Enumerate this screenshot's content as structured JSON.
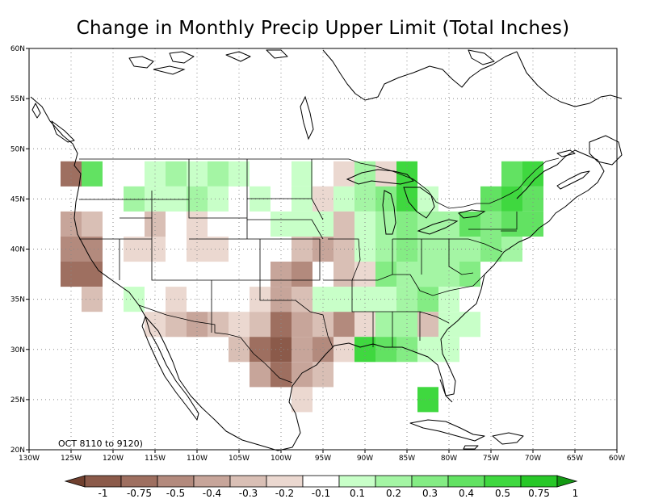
{
  "title": "Change in Monthly Precip Upper Limit (Total Inches)",
  "period_label": "OCT 8110 to 9120)",
  "map": {
    "lon_range": [
      -130,
      -60
    ],
    "lat_range": [
      20,
      60
    ],
    "lon_ticks": [
      {
        "value": -130,
        "label": "130W"
      },
      {
        "value": -125,
        "label": "125W"
      },
      {
        "value": -120,
        "label": "120W"
      },
      {
        "value": -115,
        "label": "115W"
      },
      {
        "value": -110,
        "label": "110W"
      },
      {
        "value": -105,
        "label": "105W"
      },
      {
        "value": -100,
        "label": "100W"
      },
      {
        "value": -95,
        "label": "95W"
      },
      {
        "value": -90,
        "label": "90W"
      },
      {
        "value": -85,
        "label": "85W"
      },
      {
        "value": -80,
        "label": "80W"
      },
      {
        "value": -75,
        "label": "75W"
      },
      {
        "value": -70,
        "label": "70W"
      },
      {
        "value": -65,
        "label": "65W"
      },
      {
        "value": -60,
        "label": "60W"
      }
    ],
    "lat_ticks": [
      {
        "value": 20,
        "label": "20N"
      },
      {
        "value": 25,
        "label": "25N"
      },
      {
        "value": 30,
        "label": "30N"
      },
      {
        "value": 35,
        "label": "35N"
      },
      {
        "value": 40,
        "label": "40N"
      },
      {
        "value": 45,
        "label": "45N"
      },
      {
        "value": 50,
        "label": "50N"
      },
      {
        "value": 55,
        "label": "55N"
      },
      {
        "value": 60,
        "label": "60N"
      }
    ],
    "grid": true
  },
  "colorbar": {
    "labels": [
      "-1",
      "-0.75",
      "-0.5",
      "-0.4",
      "-0.3",
      "-0.2",
      "-0.1",
      "0.1",
      "0.2",
      "0.3",
      "0.4",
      "0.5",
      "0.75",
      "1"
    ],
    "colors": [
      "#8b5a4a",
      "#9e6f60",
      "#b38a7d",
      "#c7a59a",
      "#d9bfb5",
      "#ebd8d0",
      "#ffffff",
      "#c8ffc8",
      "#a4f5a4",
      "#84ec84",
      "#62e262",
      "#3fd83f",
      "#28c828"
    ],
    "left_arrow": "#70402f",
    "right_arrow": "#149a14"
  },
  "chart_data": {
    "type": "heatmap",
    "title": "Change in Monthly Precip Upper Limit (Total Inches)",
    "annotation": "OCT 8110 to 9120)",
    "units": "Total Inches",
    "cell_size_deg": 2.5,
    "category_scale": [
      "<-1",
      "-1 to -0.75",
      "-0.75 to -0.5",
      "-0.5 to -0.4",
      "-0.4 to -0.3",
      "-0.3 to -0.2",
      "-0.2 to -0.1",
      "-0.1 to 0.1",
      "0.1 to 0.2",
      "0.2 to 0.3",
      "0.3 to 0.4",
      "0.4 to 0.5",
      "0.5 to 0.75",
      "0.75 to 1",
      ">1"
    ],
    "cells": [
      {
        "lon": -125,
        "lat": 47.5,
        "value": -0.55
      },
      {
        "lon": -122.5,
        "lat": 47.5,
        "value": 0.45
      },
      {
        "lon": -115,
        "lat": 47.5,
        "value": 0.15
      },
      {
        "lon": -112.5,
        "lat": 47.5,
        "value": 0.25
      },
      {
        "lon": -110,
        "lat": 47.5,
        "value": 0.15
      },
      {
        "lon": -107.5,
        "lat": 47.5,
        "value": 0.25
      },
      {
        "lon": -105,
        "lat": 47.5,
        "value": 0.15
      },
      {
        "lon": -97.5,
        "lat": 47.5,
        "value": 0.15
      },
      {
        "lon": -92.5,
        "lat": 47.5,
        "value": -0.15
      },
      {
        "lon": -90,
        "lat": 47.5,
        "value": 0.25
      },
      {
        "lon": -87.5,
        "lat": 47.5,
        "value": -0.15
      },
      {
        "lon": -85,
        "lat": 47.5,
        "value": 0.55
      },
      {
        "lon": -72.5,
        "lat": 47.5,
        "value": 0.45
      },
      {
        "lon": -70,
        "lat": 47.5,
        "value": 0.55
      },
      {
        "lon": -117.5,
        "lat": 45,
        "value": 0.25
      },
      {
        "lon": -115,
        "lat": 45,
        "value": 0.15
      },
      {
        "lon": -112.5,
        "lat": 45,
        "value": 0.15
      },
      {
        "lon": -110,
        "lat": 45,
        "value": 0.25
      },
      {
        "lon": -107.5,
        "lat": 45,
        "value": 0.15
      },
      {
        "lon": -102.5,
        "lat": 45,
        "value": 0.15
      },
      {
        "lon": -97.5,
        "lat": 45,
        "value": 0.15
      },
      {
        "lon": -95,
        "lat": 45,
        "value": -0.15
      },
      {
        "lon": -92.5,
        "lat": 45,
        "value": 0.15
      },
      {
        "lon": -90,
        "lat": 45,
        "value": 0.25
      },
      {
        "lon": -87.5,
        "lat": 45,
        "value": 0.35
      },
      {
        "lon": -85,
        "lat": 45,
        "value": 0.6
      },
      {
        "lon": -82.5,
        "lat": 45,
        "value": 0.15
      },
      {
        "lon": -75,
        "lat": 45,
        "value": 0.45
      },
      {
        "lon": -72.5,
        "lat": 45,
        "value": 0.55
      },
      {
        "lon": -70,
        "lat": 45,
        "value": 0.45
      },
      {
        "lon": -125,
        "lat": 42.5,
        "value": -0.35
      },
      {
        "lon": -122.5,
        "lat": 42.5,
        "value": -0.25
      },
      {
        "lon": -115,
        "lat": 42.5,
        "value": -0.25
      },
      {
        "lon": -110,
        "lat": 42.5,
        "value": -0.15
      },
      {
        "lon": -100,
        "lat": 42.5,
        "value": 0.15
      },
      {
        "lon": -97.5,
        "lat": 42.5,
        "value": 0.15
      },
      {
        "lon": -95,
        "lat": 42.5,
        "value": 0.15
      },
      {
        "lon": -92.5,
        "lat": 42.5,
        "value": -0.25
      },
      {
        "lon": -90,
        "lat": 42.5,
        "value": 0.15
      },
      {
        "lon": -87.5,
        "lat": 42.5,
        "value": 0.25
      },
      {
        "lon": -85,
        "lat": 42.5,
        "value": 0.35
      },
      {
        "lon": -82.5,
        "lat": 42.5,
        "value": 0.25
      },
      {
        "lon": -80,
        "lat": 42.5,
        "value": 0.25
      },
      {
        "lon": -77.5,
        "lat": 42.5,
        "value": 0.45
      },
      {
        "lon": -75,
        "lat": 42.5,
        "value": 0.35
      },
      {
        "lon": -72.5,
        "lat": 42.5,
        "value": 0.45
      },
      {
        "lon": -70,
        "lat": 42.5,
        "value": 0.45
      },
      {
        "lon": -125,
        "lat": 40,
        "value": -0.45
      },
      {
        "lon": -122.5,
        "lat": 40,
        "value": -0.45
      },
      {
        "lon": -117.5,
        "lat": 40,
        "value": -0.15
      },
      {
        "lon": -115,
        "lat": 40,
        "value": -0.15
      },
      {
        "lon": -110,
        "lat": 40,
        "value": -0.15
      },
      {
        "lon": -107.5,
        "lat": 40,
        "value": -0.15
      },
      {
        "lon": -97.5,
        "lat": 40,
        "value": -0.25
      },
      {
        "lon": -95,
        "lat": 40,
        "value": -0.35
      },
      {
        "lon": -92.5,
        "lat": 40,
        "value": -0.25
      },
      {
        "lon": -90,
        "lat": 40,
        "value": 0.15
      },
      {
        "lon": -87.5,
        "lat": 40,
        "value": 0.25
      },
      {
        "lon": -85,
        "lat": 40,
        "value": 0.35
      },
      {
        "lon": -82.5,
        "lat": 40,
        "value": 0.25
      },
      {
        "lon": -80,
        "lat": 40,
        "value": 0.25
      },
      {
        "lon": -77.5,
        "lat": 40,
        "value": 0.25
      },
      {
        "lon": -75,
        "lat": 40,
        "value": 0.35
      },
      {
        "lon": -72.5,
        "lat": 40,
        "value": 0.25
      },
      {
        "lon": -125,
        "lat": 37.5,
        "value": -0.55
      },
      {
        "lon": -122.5,
        "lat": 37.5,
        "value": -0.55
      },
      {
        "lon": -100,
        "lat": 37.5,
        "value": -0.35
      },
      {
        "lon": -97.5,
        "lat": 37.5,
        "value": -0.45
      },
      {
        "lon": -92.5,
        "lat": 37.5,
        "value": -0.25
      },
      {
        "lon": -90,
        "lat": 37.5,
        "value": -0.15
      },
      {
        "lon": -87.5,
        "lat": 37.5,
        "value": 0.35
      },
      {
        "lon": -85,
        "lat": 37.5,
        "value": 0.25
      },
      {
        "lon": -82.5,
        "lat": 37.5,
        "value": 0.25
      },
      {
        "lon": -80,
        "lat": 37.5,
        "value": 0.25
      },
      {
        "lon": -77.5,
        "lat": 37.5,
        "value": 0.35
      },
      {
        "lon": -122.5,
        "lat": 35,
        "value": -0.25
      },
      {
        "lon": -117.5,
        "lat": 35,
        "value": 0.15
      },
      {
        "lon": -112.5,
        "lat": 35,
        "value": -0.15
      },
      {
        "lon": -102.5,
        "lat": 35,
        "value": -0.15
      },
      {
        "lon": -100,
        "lat": 35,
        "value": -0.35
      },
      {
        "lon": -97.5,
        "lat": 35,
        "value": -0.25
      },
      {
        "lon": -95,
        "lat": 35,
        "value": 0.15
      },
      {
        "lon": -92.5,
        "lat": 35,
        "value": 0.15
      },
      {
        "lon": -90,
        "lat": 35,
        "value": 0.15
      },
      {
        "lon": -87.5,
        "lat": 35,
        "value": 0.15
      },
      {
        "lon": -85,
        "lat": 35,
        "value": 0.25
      },
      {
        "lon": -82.5,
        "lat": 35,
        "value": 0.35
      },
      {
        "lon": -80,
        "lat": 35,
        "value": 0.15
      },
      {
        "lon": -115,
        "lat": 32.5,
        "value": -0.15
      },
      {
        "lon": -112.5,
        "lat": 32.5,
        "value": -0.25
      },
      {
        "lon": -110,
        "lat": 32.5,
        "value": -0.35
      },
      {
        "lon": -107.5,
        "lat": 32.5,
        "value": -0.25
      },
      {
        "lon": -105,
        "lat": 32.5,
        "value": -0.15
      },
      {
        "lon": -102.5,
        "lat": 32.5,
        "value": -0.25
      },
      {
        "lon": -100,
        "lat": 32.5,
        "value": -0.55
      },
      {
        "lon": -97.5,
        "lat": 32.5,
        "value": -0.35
      },
      {
        "lon": -95,
        "lat": 32.5,
        "value": -0.25
      },
      {
        "lon": -92.5,
        "lat": 32.5,
        "value": -0.45
      },
      {
        "lon": -90,
        "lat": 32.5,
        "value": -0.15
      },
      {
        "lon": -87.5,
        "lat": 32.5,
        "value": 0.25
      },
      {
        "lon": -85,
        "lat": 32.5,
        "value": 0.25
      },
      {
        "lon": -82.5,
        "lat": 32.5,
        "value": -0.25
      },
      {
        "lon": -80,
        "lat": 32.5,
        "value": 0.15
      },
      {
        "lon": -77.5,
        "lat": 32.5,
        "value": 0.15
      },
      {
        "lon": -105,
        "lat": 30,
        "value": -0.25
      },
      {
        "lon": -102.5,
        "lat": 30,
        "value": -0.55
      },
      {
        "lon": -100,
        "lat": 30,
        "value": -0.8
      },
      {
        "lon": -97.5,
        "lat": 30,
        "value": -0.35
      },
      {
        "lon": -95,
        "lat": 30,
        "value": -0.45
      },
      {
        "lon": -92.5,
        "lat": 30,
        "value": -0.15
      },
      {
        "lon": -90,
        "lat": 30,
        "value": 0.55
      },
      {
        "lon": -87.5,
        "lat": 30,
        "value": 0.45
      },
      {
        "lon": -85,
        "lat": 30,
        "value": 0.35
      },
      {
        "lon": -82.5,
        "lat": 30,
        "value": 0.15
      },
      {
        "lon": -80,
        "lat": 30,
        "value": 0.15
      },
      {
        "lon": -102.5,
        "lat": 27.5,
        "value": -0.35
      },
      {
        "lon": -100,
        "lat": 27.5,
        "value": -0.55
      },
      {
        "lon": -97.5,
        "lat": 27.5,
        "value": -0.35
      },
      {
        "lon": -95,
        "lat": 27.5,
        "value": -0.25
      },
      {
        "lon": -82.5,
        "lat": 25,
        "value": 0.55
      },
      {
        "lon": -97.5,
        "lat": 25,
        "value": -0.15
      }
    ]
  }
}
